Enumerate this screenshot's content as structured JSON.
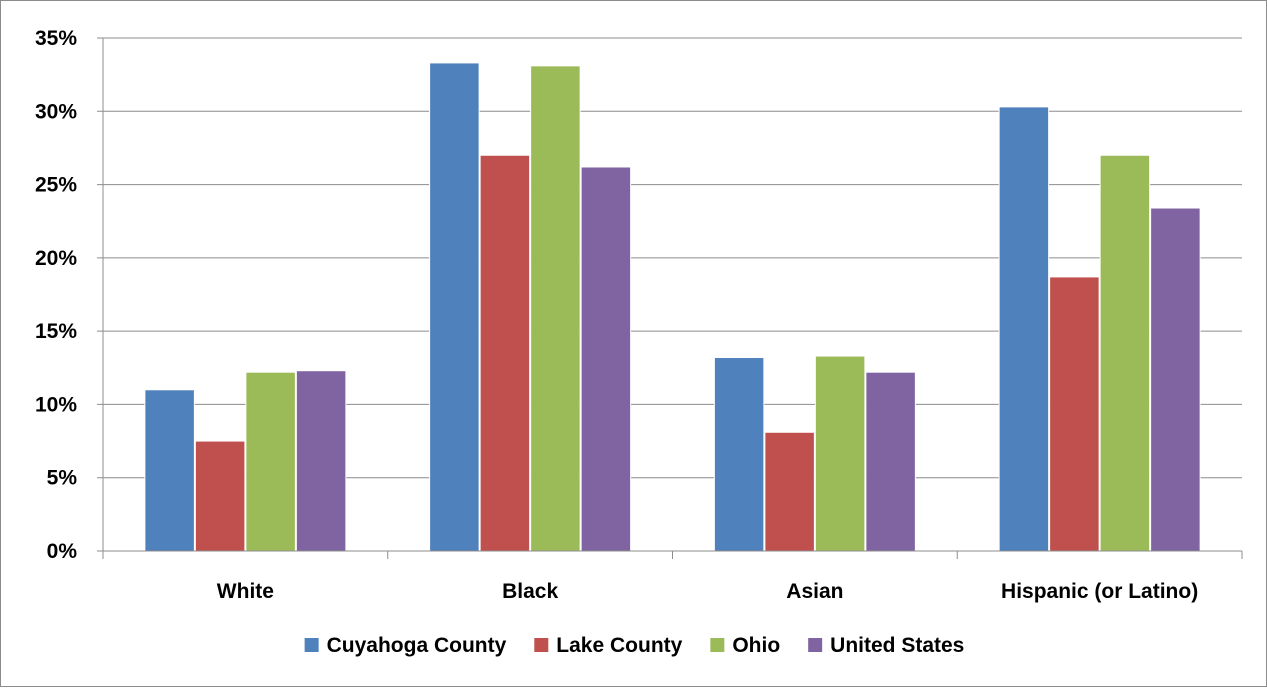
{
  "chart_data": {
    "type": "bar",
    "title": "",
    "xlabel": "",
    "ylabel": "",
    "categories": [
      "White",
      "Black",
      "Asian",
      "Hispanic (or Latino)"
    ],
    "ylim": [
      0,
      35
    ],
    "yticks": [
      0,
      5,
      10,
      15,
      20,
      25,
      30,
      35
    ],
    "ytick_labels": [
      "0%",
      "5%",
      "10%",
      "15%",
      "20%",
      "25%",
      "30%",
      "35%"
    ],
    "grid": true,
    "legend_position": "bottom",
    "series": [
      {
        "name": "Cuyahoga County",
        "color": "#4F81BD",
        "values": [
          11.0,
          33.3,
          13.2,
          30.3
        ]
      },
      {
        "name": "Lake County",
        "color": "#C0504D",
        "values": [
          7.5,
          27.0,
          8.1,
          18.7
        ]
      },
      {
        "name": "Ohio",
        "color": "#9BBB59",
        "values": [
          12.2,
          33.1,
          13.3,
          27.0
        ]
      },
      {
        "name": "United States",
        "color": "#8064A2",
        "values": [
          12.3,
          26.2,
          12.2,
          23.4
        ]
      }
    ]
  }
}
